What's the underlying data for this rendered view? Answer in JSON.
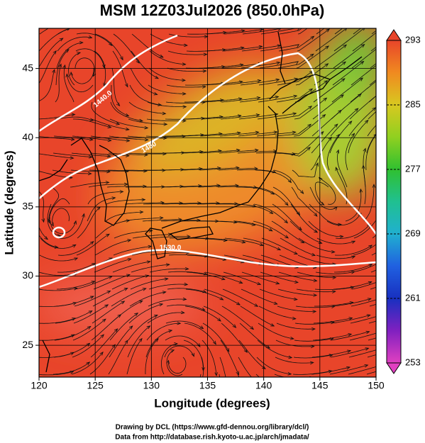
{
  "chart_data": {
    "type": "map",
    "title": "MSM 12Z03Jul2026 (850.0hPa)",
    "xlabel": "Longitude (degrees)",
    "ylabel": "Latitude  (degrees)",
    "xlim": [
      120,
      150
    ],
    "ylim": [
      22.7,
      47.9
    ],
    "xticks": [
      120,
      125,
      130,
      135,
      140,
      145,
      150
    ],
    "yticks": [
      25,
      30,
      35,
      40,
      45
    ],
    "grid": true,
    "colorbar": {
      "lim": [
        253,
        293
      ],
      "ticks": [
        293,
        285,
        277,
        269,
        261,
        253
      ],
      "colors": [
        "#e040c0",
        "#8020c0",
        "#1830c0",
        "#2060e0",
        "#20b0d0",
        "#20c090",
        "#30c030",
        "#90d020",
        "#d8c820",
        "#f08a20",
        "#e8452a"
      ]
    },
    "annotations": [
      "1440.0",
      "1480",
      "1530.0"
    ]
  },
  "credits": [
    "Drawing by DCL (https://www.gfd-dennou.org/library/dcl/)",
    "Data from http://database.rish.kyoto-u.ac.jp/arch/jmadata/"
  ]
}
